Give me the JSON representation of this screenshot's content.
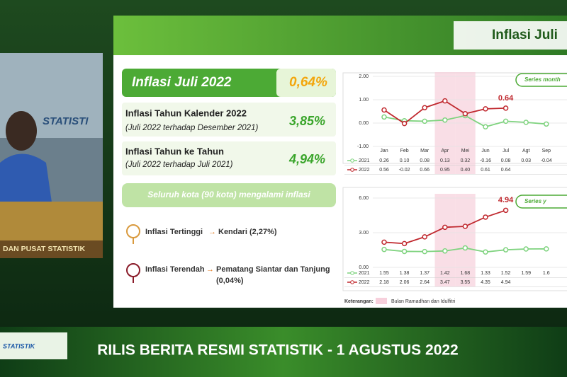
{
  "header": {
    "title": "Inflasi Juli"
  },
  "presenter": {
    "wall_text": "STATISTI",
    "desk_text": "DAN PUSAT STATISTIK"
  },
  "summary": {
    "main": {
      "label": "Inflasi Juli 2022",
      "value": "0,64%"
    },
    "calendar": {
      "label": "Inflasi Tahun Kalender 2022",
      "note": "(Juli 2022 terhadap Desember 2021)",
      "value": "3,85%"
    },
    "yoy": {
      "label": "Inflasi Tahun ke Tahun",
      "note": "(Juli 2022 terhadap Juli 2021)",
      "value": "4,94%"
    },
    "banner": "Seluruh kota (90 kota) mengalami inflasi",
    "highest": {
      "label": "Inflasi Tertinggi",
      "city": "Kendari (2,27%)"
    },
    "lowest": {
      "label": "Inflasi Terendah",
      "city": "Pematang Siantar dan Tanjung",
      "value": "(0,04%)"
    }
  },
  "legend_note": {
    "title": "Keterangan:",
    "label": "Bulan Ramadhan dan Idulfitri"
  },
  "footer": {
    "logo": "STATISTIK",
    "title": "RILIS BERITA RESMI STATISTIK - 1 AGUSTUS 2022"
  },
  "chart_data": [
    {
      "type": "line",
      "title": "Series month",
      "categories": [
        "Jan",
        "Feb",
        "Mar",
        "Apr",
        "Mei",
        "Jun",
        "Jul",
        "Agt",
        "Sep"
      ],
      "ylim": [
        -1,
        2
      ],
      "yticks": [
        {
          "value": -1,
          "label": "-1.00"
        },
        {
          "value": 0,
          "label": "0.00"
        },
        {
          "value": 1,
          "label": "1.00"
        },
        {
          "value": 2,
          "label": "2.00"
        }
      ],
      "highlight": [
        "Apr",
        "Mei"
      ],
      "annotation": "0.64",
      "series": [
        {
          "name": "2021",
          "color": "#7fd37f",
          "values": [
            0.26,
            0.1,
            0.08,
            0.13,
            0.32,
            -0.16,
            0.08,
            0.03,
            -0.04
          ],
          "value_labels": [
            "0.26",
            "0.10",
            "0.08",
            "0.13",
            "0.32",
            "-0.16",
            "0.08",
            "0.03",
            "-0.04"
          ]
        },
        {
          "name": "2022",
          "color": "#c0282e",
          "values": [
            0.56,
            -0.02,
            0.66,
            0.95,
            0.4,
            0.61,
            0.64,
            null,
            null
          ],
          "value_labels": [
            "0.56",
            "-0.02",
            "0.66",
            "0.95",
            "0.40",
            "0.61",
            "0.64",
            null,
            null
          ]
        }
      ]
    },
    {
      "type": "line",
      "title": "Series y",
      "ylim": [
        0,
        6
      ],
      "yticks": [
        {
          "value": 0,
          "label": "0.00"
        },
        {
          "value": 3,
          "label": "3.00"
        },
        {
          "value": 6,
          "label": "6.00"
        }
      ],
      "highlight": [
        "Apr",
        "Mei"
      ],
      "annotation": "4.94",
      "series": [
        {
          "name": "2021",
          "color": "#7fd37f",
          "values": [
            1.55,
            1.38,
            1.37,
            1.42,
            1.68,
            1.33,
            1.52,
            1.59,
            1.6
          ]
        },
        {
          "name": "2022",
          "color": "#c0282e",
          "values": [
            2.18,
            2.06,
            2.64,
            3.47,
            3.55,
            4.35,
            4.94,
            null,
            null
          ],
          "value_labels": [
            "2.18",
            "2.06",
            "2.64",
            "3.47",
            "3.55",
            "4.35",
            "4.94",
            null,
            null
          ]
        }
      ]
    }
  ]
}
